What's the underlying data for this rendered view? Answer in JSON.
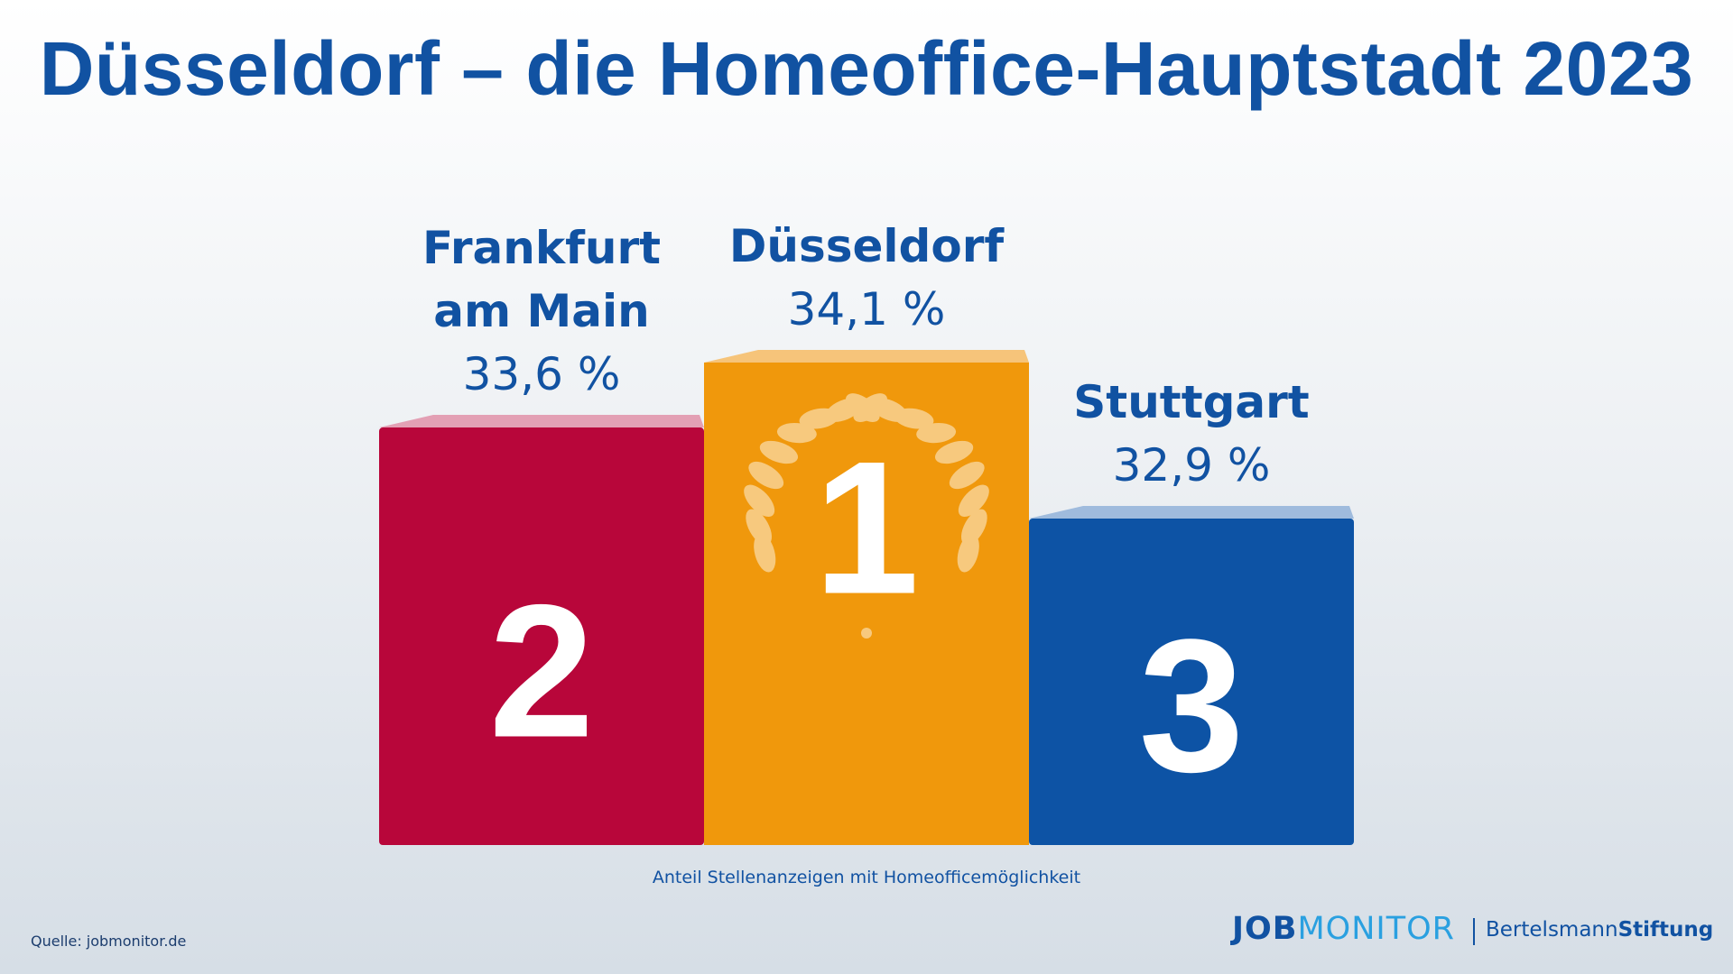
{
  "title": "Düsseldorf – die Homeoffice-Hauptstadt 2023",
  "chart_data": {
    "type": "bar",
    "categories": [
      "Frankfurt am Main",
      "Düsseldorf",
      "Stuttgart"
    ],
    "values": [
      33.6,
      34.1,
      32.9
    ],
    "value_labels": [
      "33,6 %",
      "34,1 %",
      "32,9 %"
    ],
    "ranks": [
      "2",
      "1",
      "3"
    ],
    "city_lines": [
      [
        "Frankfurt",
        "am Main"
      ],
      [
        "Düsseldorf"
      ],
      [
        "Stuttgart"
      ]
    ],
    "colors": [
      "#b8063a",
      "#f0980c",
      "#0d53a5"
    ],
    "top_colors": [
      "#e3a0b4",
      "#f6c47a",
      "#9fbbdd"
    ],
    "xlabel": "Anteil Stellenanzeigen mit Homeofficemöglichkeit"
  },
  "footer": {
    "source": "Quelle: jobmonitor.de",
    "logo_job": "JOB",
    "logo_monitor": "MONITOR",
    "logo2_plain": "Bertelsmann",
    "logo2_bold": "Stiftung"
  }
}
